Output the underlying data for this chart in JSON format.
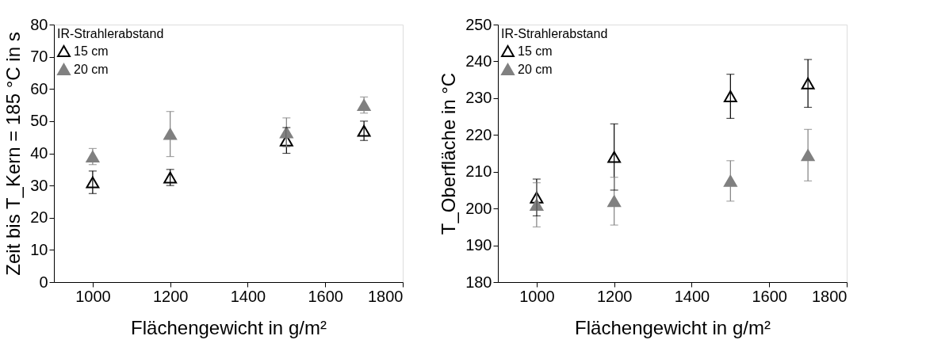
{
  "chart_data": [
    {
      "type": "scatter",
      "xlabel": "Flächengewicht in g/m²",
      "ylabel": "Zeit bis T_Kern = 185 °C in s",
      "legend_title": "IR-Strahlerabstand",
      "x": [
        1000,
        1200,
        1500,
        1700
      ],
      "series": [
        {
          "name": "15 cm",
          "color": "#000000",
          "values": [
            31,
            32.5,
            44,
            47
          ],
          "errors": [
            3.5,
            2.5,
            4,
            3
          ]
        },
        {
          "name": "20 cm",
          "color": "#808080",
          "values": [
            39,
            46,
            46.5,
            55
          ],
          "errors": [
            2.5,
            7,
            4.5,
            2.5
          ]
        }
      ],
      "xlim": [
        900,
        1800
      ],
      "xticks": [
        1000,
        1200,
        1400,
        1600,
        1800
      ],
      "ylim": [
        0,
        80
      ],
      "yticks": [
        0,
        10,
        20,
        30,
        40,
        50,
        60,
        70,
        80
      ],
      "grid": false,
      "legend": "top left",
      "marker": "triangle"
    },
    {
      "type": "scatter",
      "xlabel": "Flächengewicht in g/m²",
      "ylabel": "T_Oberfläche in °C",
      "legend_title": "IR-Strahlerabstand",
      "x": [
        1000,
        1200,
        1500,
        1700
      ],
      "series": [
        {
          "name": "15 cm",
          "color": "#000000",
          "values": [
            203,
            214,
            230.5,
            234
          ],
          "errors": [
            5,
            9,
            6,
            6.5
          ]
        },
        {
          "name": "20 cm",
          "color": "#808080",
          "values": [
            201,
            202,
            207.5,
            214.5
          ],
          "errors": [
            6,
            6.5,
            5.5,
            7
          ]
        }
      ],
      "xlim": [
        900,
        1800
      ],
      "xticks": [
        1000,
        1200,
        1400,
        1600,
        1800
      ],
      "ylim": [
        180,
        250
      ],
      "yticks": [
        180,
        190,
        200,
        210,
        220,
        230,
        240,
        250
      ],
      "grid": false,
      "legend": "top left",
      "marker": "triangle"
    }
  ]
}
